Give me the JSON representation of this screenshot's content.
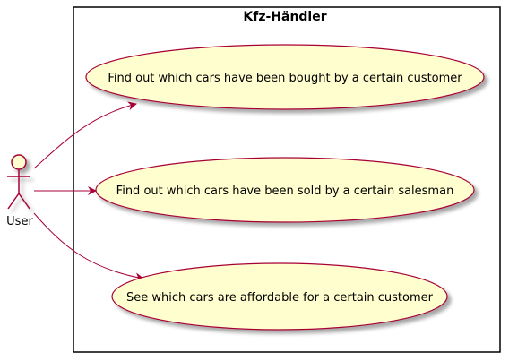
{
  "system": {
    "title": "Kfz-Händler"
  },
  "actor": {
    "name": "User",
    "icon": "stick-figure-icon"
  },
  "use_cases": [
    {
      "label": "Find out which cars have been bought by a certain customer"
    },
    {
      "label": "Find out which cars have been sold by a certain salesman"
    },
    {
      "label": "See which cars are affordable for a certain customer"
    }
  ],
  "colors": {
    "use_case_fill": "#FEFECE",
    "line": "#A80036",
    "boundary": "#000000"
  }
}
